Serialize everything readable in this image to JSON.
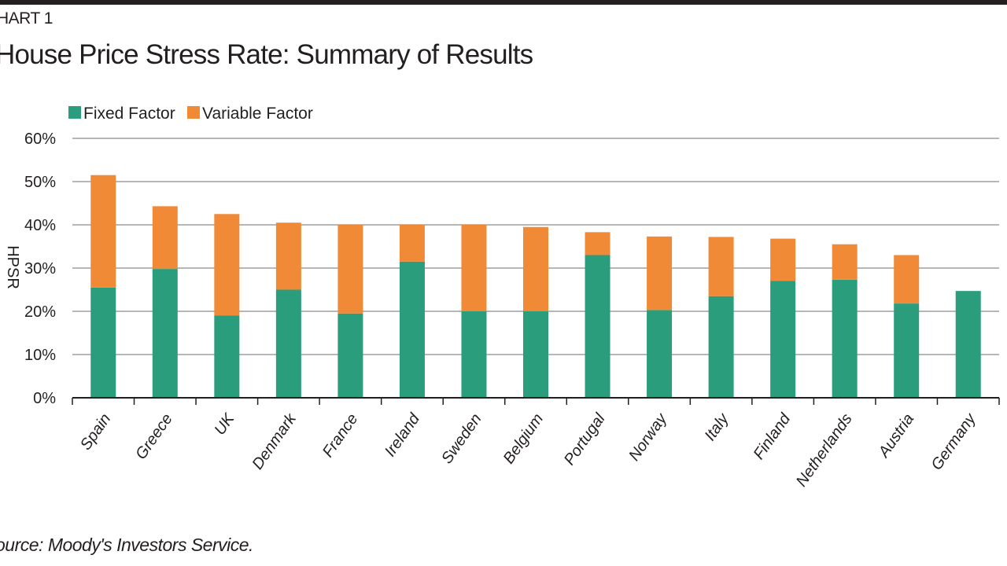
{
  "header": {
    "chart_number": "HART 1",
    "title": "House Price Stress Rate: Summary of Results"
  },
  "footer": {
    "source": "ource: Moody's Investors Service."
  },
  "colors": {
    "fixed": "#2a9d7c",
    "variable": "#f18a36",
    "grid": "#8c8c8c",
    "axis": "#231f20"
  },
  "chart_data": {
    "type": "bar",
    "stacked": true,
    "title": "House Price Stress Rate: Summary of Results",
    "xlabel": "",
    "ylabel": "HPSR",
    "ylim": [
      0,
      60
    ],
    "yticks": [
      0,
      10,
      20,
      30,
      40,
      50,
      60
    ],
    "ytick_labels": [
      "0%",
      "10%",
      "20%",
      "30%",
      "40%",
      "50%",
      "60%"
    ],
    "grid": true,
    "legend_position": "top-left",
    "categories": [
      "Spain",
      "Greece",
      "UK",
      "Denmark",
      "France",
      "Ireland",
      "Sweden",
      "Belgium",
      "Portugal",
      "Norway",
      "Italy",
      "Finland",
      "Netherlands",
      "Austria",
      "Germany"
    ],
    "series": [
      {
        "name": "Fixed Factor",
        "color": "#2a9d7c",
        "values": [
          25.5,
          29.8,
          19,
          25,
          19.5,
          31.5,
          20,
          20,
          33,
          20.3,
          23.5,
          27,
          27.3,
          21.8,
          24.7
        ]
      },
      {
        "name": "Variable Factor",
        "color": "#f18a36",
        "values": [
          26,
          14.5,
          23.5,
          15.5,
          20.5,
          8.5,
          20,
          19.5,
          5.3,
          17,
          13.7,
          9.8,
          8.2,
          11.2,
          0
        ]
      }
    ]
  }
}
